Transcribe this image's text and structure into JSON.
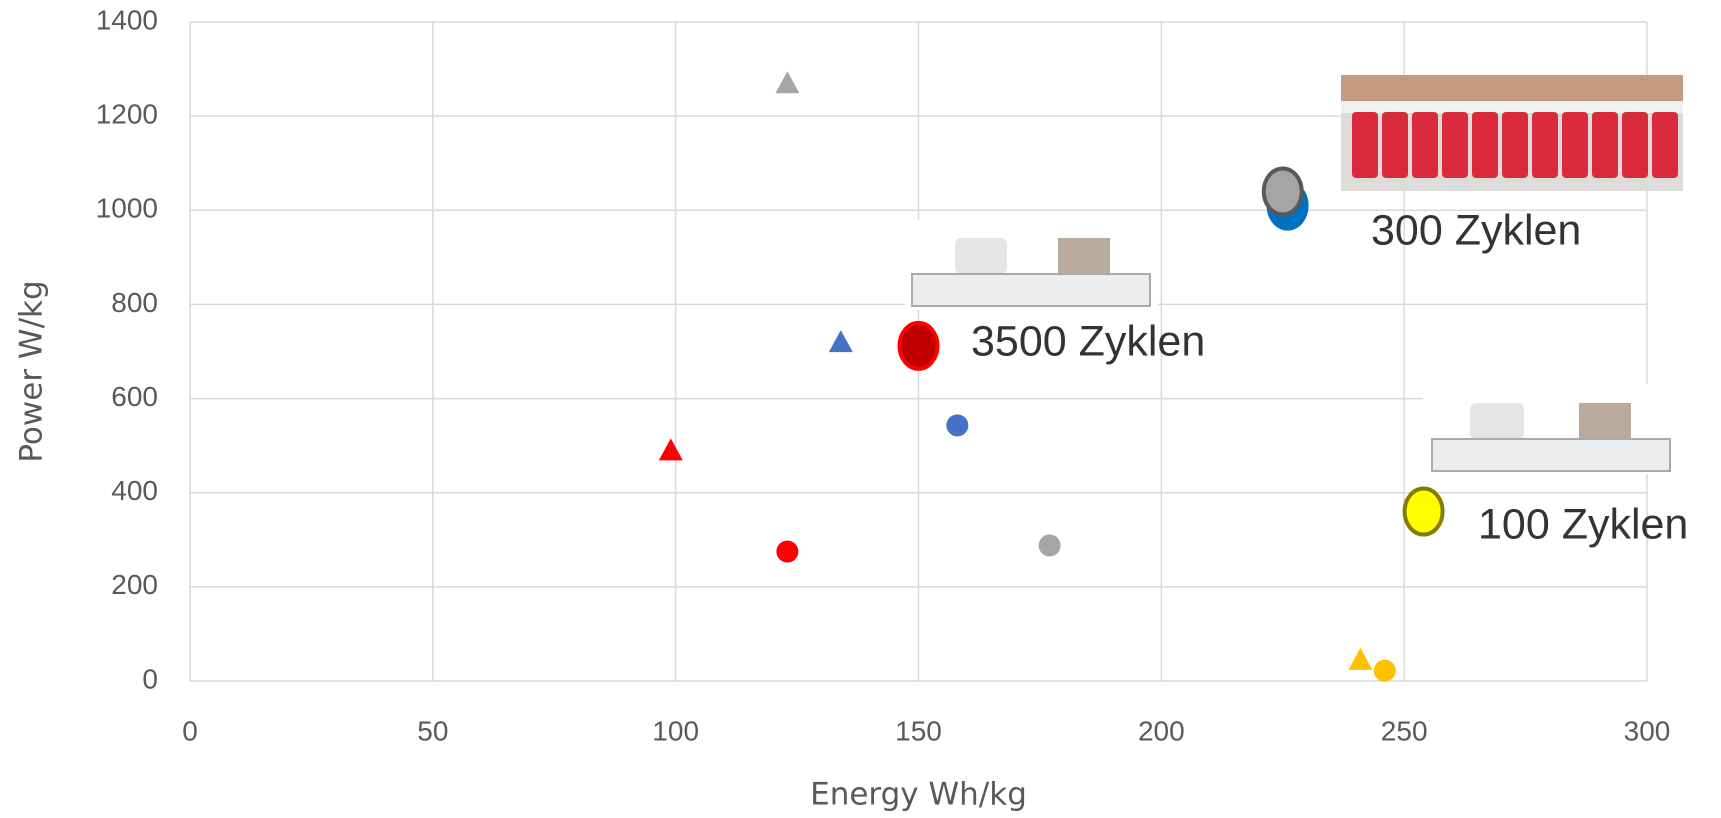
{
  "chart_data": {
    "type": "scatter",
    "x_label": "Energy Wh/kg",
    "y_label": "Power W/kg",
    "xlim": [
      0,
      300
    ],
    "xticks": [
      0,
      50,
      100,
      150,
      200,
      250,
      300
    ],
    "ylim": [
      0,
      1400
    ],
    "yticks": [
      0,
      200,
      400,
      600,
      800,
      1000,
      1200,
      1400
    ],
    "grid": true,
    "series": [
      {
        "color": "#a5a5a5",
        "marker": "triangle",
        "x": [
          123
        ],
        "values": [
          1270
        ]
      },
      {
        "color": "#4472c4",
        "marker": "triangle",
        "x": [
          134
        ],
        "values": [
          720
        ]
      },
      {
        "color": "#ff0000",
        "marker": "triangle",
        "x": [
          99
        ],
        "values": [
          490
        ]
      },
      {
        "color": "#ff0000",
        "marker": "circle",
        "x": [
          123
        ],
        "values": [
          275
        ]
      },
      {
        "color": "#4472c4",
        "marker": "circle",
        "x": [
          158
        ],
        "values": [
          543
        ]
      },
      {
        "color": "#a5a5a5",
        "marker": "circle",
        "x": [
          177
        ],
        "values": [
          288
        ]
      },
      {
        "color": "#ffc000",
        "marker": "triangle",
        "x": [
          241
        ],
        "values": [
          45
        ]
      },
      {
        "color": "#ffc000",
        "marker": "circle",
        "x": [
          246
        ],
        "values": [
          22
        ]
      },
      {
        "color": "#c00000",
        "edgecolor": "#ff0000",
        "marker": "ellipse",
        "x": [
          150
        ],
        "values": [
          712
        ]
      },
      {
        "color": "#0070c0",
        "edgecolor": "#0070c0",
        "marker": "ellipse",
        "x": [
          226
        ],
        "values": [
          1010
        ]
      },
      {
        "color": "#a5a5a5",
        "edgecolor": "#595959",
        "marker": "ellipse",
        "x": [
          225
        ],
        "values": [
          1040
        ]
      },
      {
        "color": "#ffff00",
        "edgecolor": "#808000",
        "marker": "ellipse",
        "x": [
          254
        ],
        "values": [
          360
        ]
      }
    ],
    "annotations": [
      "3500 Zyklen",
      "300 Zyklen",
      "100 Zyklen"
    ]
  }
}
